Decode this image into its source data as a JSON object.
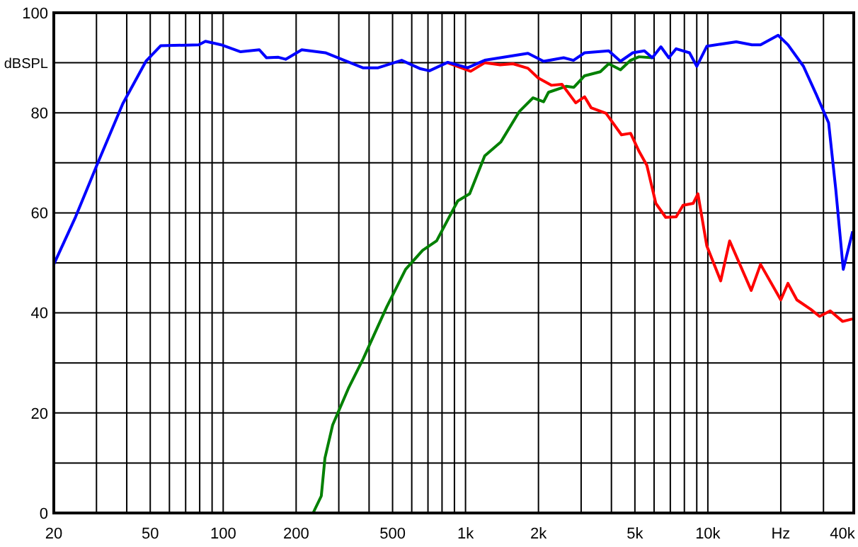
{
  "chart_data": {
    "type": "line",
    "ylabel": "dBSPL",
    "log": "x",
    "grid": true,
    "line_style": "solid",
    "marker": "none",
    "xlim": [
      20,
      40000
    ],
    "ylim": [
      0,
      100
    ],
    "xticks": [
      20,
      {
        "value": 30,
        "label": null
      },
      {
        "value": 40,
        "label": null
      },
      50,
      {
        "value": 60,
        "label": null
      },
      {
        "value": 70,
        "label": null
      },
      {
        "value": 80,
        "label": null
      },
      {
        "value": 90,
        "label": null
      },
      100,
      200,
      {
        "value": 300,
        "label": null
      },
      {
        "value": 400,
        "label": null
      },
      500,
      {
        "value": 600,
        "label": null
      },
      {
        "value": 700,
        "label": null
      },
      {
        "value": 800,
        "label": null
      },
      {
        "value": 900,
        "label": null
      },
      {
        "value": 1000,
        "label": "1k"
      },
      {
        "value": 2000,
        "label": "2k"
      },
      {
        "value": 3000,
        "label": null
      },
      {
        "value": 4000,
        "label": null
      },
      {
        "value": 5000,
        "label": "5k"
      },
      {
        "value": 6000,
        "label": null
      },
      {
        "value": 7000,
        "label": null
      },
      {
        "value": 8000,
        "label": null
      },
      {
        "value": 9000,
        "label": null
      },
      {
        "value": 10000,
        "label": "10k"
      },
      {
        "value": 20000,
        "label": "Hz"
      },
      {
        "value": 30000,
        "label": null
      },
      {
        "value": 40000,
        "label": "40k"
      }
    ],
    "yticks": [
      0,
      {
        "value": 10,
        "label": null
      },
      20,
      {
        "value": 30,
        "label": null
      },
      40,
      {
        "value": 50,
        "label": null
      },
      60,
      {
        "value": 70,
        "label": null
      },
      80,
      {
        "value": 90,
        "label": null
      },
      100
    ],
    "series": [
      {
        "color": "#0000ff",
        "x": [
          20,
          24.6,
          30.1,
          38.5,
          48,
          55.2,
          79.3,
          84.5,
          98,
          118,
          141,
          151,
          169,
          181,
          211,
          264,
          377,
          436,
          545,
          652,
          710,
          845,
          1020,
          1200,
          1810,
          2100,
          2540,
          2790,
          3100,
          3900,
          4360,
          4900,
          5470,
          5900,
          6400,
          6900,
          7400,
          8400,
          9000,
          9900,
          13100,
          15200,
          16500,
          19500,
          21400,
          24800,
          28000,
          31500,
          33700,
          36200,
          39600
        ],
        "values": [
          49.7,
          59.2,
          69.5,
          81.8,
          90.3,
          93.4,
          93.6,
          94.3,
          93.6,
          92.2,
          92.6,
          91,
          91.1,
          90.7,
          92.6,
          92,
          89,
          89,
          90.5,
          88.8,
          88.4,
          90.1,
          89,
          90.5,
          91.9,
          90.3,
          91,
          90.5,
          92,
          92.4,
          90.3,
          92,
          92.4,
          91,
          93.2,
          91,
          92.8,
          92,
          89.3,
          93.3,
          94.2,
          93.6,
          93.6,
          95.5,
          93.6,
          89.3,
          83.7,
          78,
          64.8,
          48.7,
          56.3
        ]
      },
      {
        "color": "#ff0000",
        "x": [
          845,
          1050,
          1200,
          1390,
          1570,
          1810,
          1990,
          2260,
          2500,
          2850,
          3100,
          3300,
          3800,
          4400,
          4800,
          5200,
          5600,
          6100,
          6700,
          7400,
          7900,
          8700,
          9100,
          9900,
          11300,
          12300,
          15100,
          16500,
          20000,
          21400,
          23300,
          26600,
          28900,
          32000,
          36000,
          39500
        ],
        "values": [
          90,
          88.3,
          90,
          89.6,
          89.8,
          88.9,
          87,
          85.5,
          85.7,
          82,
          83.2,
          81,
          79.9,
          75.6,
          75.9,
          72.3,
          69.5,
          61.9,
          59.1,
          59.2,
          61.5,
          61.9,
          63.8,
          53.4,
          46.4,
          54.4,
          44.5,
          49.7,
          42.6,
          45.9,
          42.6,
          40.7,
          39.3,
          40.4,
          38.3,
          38.8
        ]
      },
      {
        "color": "#008000",
        "x": [
          235,
          254,
          263,
          283,
          330,
          378,
          473,
          566,
          665,
          760,
          929,
          1040,
          1200,
          1400,
          1670,
          1900,
          2100,
          2200,
          2600,
          2800,
          3100,
          3600,
          3900,
          4360,
          4800,
          5200,
          5900
        ],
        "values": [
          0,
          3.4,
          11,
          17.6,
          25.1,
          30.8,
          41.2,
          48.7,
          52.5,
          54.4,
          62.4,
          63.8,
          71.4,
          74.2,
          80.3,
          83,
          82.2,
          84.1,
          85.3,
          85.1,
          87.4,
          88.2,
          89.8,
          88.6,
          90.5,
          91.2,
          91
        ]
      }
    ]
  }
}
